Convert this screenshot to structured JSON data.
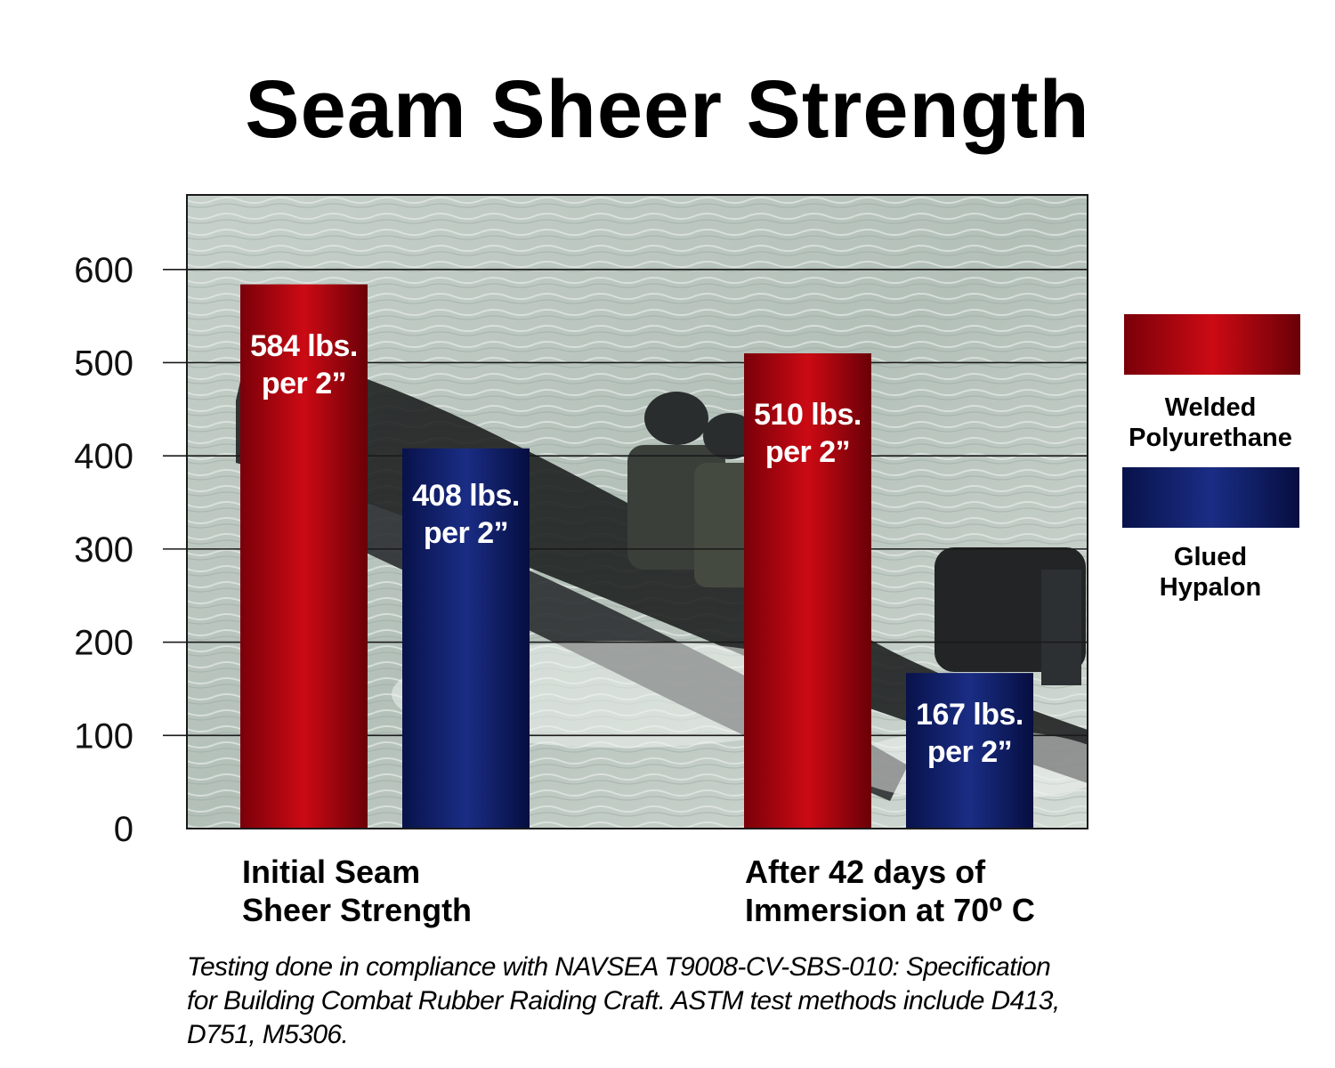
{
  "chart_data": {
    "type": "bar",
    "title": "Seam Sheer Strength",
    "categories": [
      "Initial Seam\nSheer Strength",
      "After 42 days of\nImmersion at 70⁰ C"
    ],
    "series": [
      {
        "name": "Welded Polyurethane",
        "values": [
          584,
          510
        ],
        "color": "#b30011",
        "data_labels": [
          "584 lbs.\nper 2”",
          "510 lbs.\nper 2”"
        ]
      },
      {
        "name": "Glued Hypalon",
        "values": [
          408,
          167
        ],
        "color": "#0e1f6e",
        "data_labels": [
          "408 lbs.\nper 2”",
          "167 lbs.\nper 2”"
        ]
      }
    ],
    "y_ticks": [
      "0",
      "100",
      "200",
      "300",
      "400",
      "500",
      "600"
    ],
    "ylim": [
      0,
      680
    ],
    "grid": true,
    "legend_position": "right"
  },
  "legend": {
    "items": [
      {
        "label": "Welded\nPolyurethane"
      },
      {
        "label": "Glued\nHypalon"
      }
    ]
  },
  "footnote": "Testing done in compliance with NAVSEA T9008-CV-SBS-010: Specification for Building Combat Rubber Raiding Craft. ASTM test methods include D413, D751, M5306."
}
